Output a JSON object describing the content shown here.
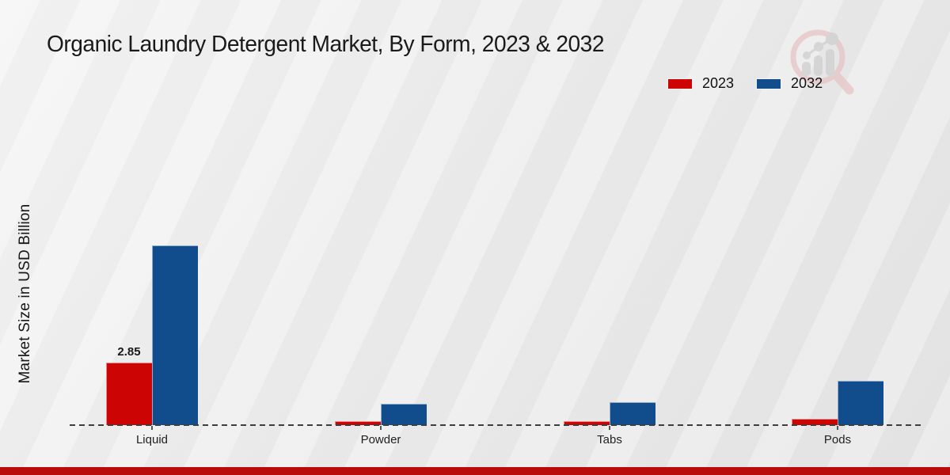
{
  "title": "Organic Laundry Detergent Market, By Form, 2023 & 2032",
  "legend": {
    "items": [
      {
        "label": "2023",
        "color": "#cc0404"
      },
      {
        "label": "2032",
        "color": "#114c8c"
      }
    ]
  },
  "chart_data": {
    "type": "bar",
    "title": "Organic Laundry Detergent Market, By Form, 2023 & 2032",
    "categories": [
      "Liquid",
      "Powder",
      "Tabs",
      "Pods"
    ],
    "series": [
      {
        "name": "2023",
        "color": "#cc0404",
        "values": [
          2.85,
          0.19,
          0.17,
          0.29
        ],
        "labels": [
          "2.85",
          "",
          "",
          ""
        ]
      },
      {
        "name": "2032",
        "color": "#114c8c",
        "values": [
          8.15,
          0.98,
          1.06,
          2.0
        ],
        "labels": [
          "",
          "",
          "",
          ""
        ]
      }
    ],
    "xlabel": "",
    "ylabel": "Market Size in USD Billion",
    "ylim": [
      0,
      10
    ],
    "grid": false,
    "legend_position": "top-right",
    "baseline_style": "dashed-zero-line"
  },
  "footer": {
    "strip_color": "#b90b0b"
  }
}
